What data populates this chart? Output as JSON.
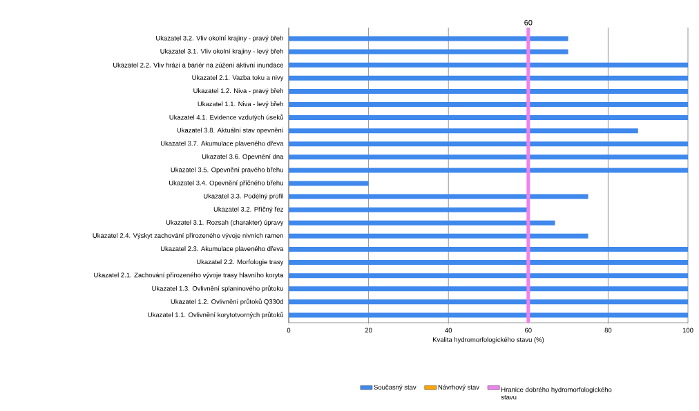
{
  "chart_data": {
    "type": "bar",
    "orientation": "horizontal",
    "categories": [
      "Ukazatel 3.2. Vliv okolní krajiny - pravý břeh",
      "Ukazatel 3.1. Vliv okolní krajiny - levý břeh",
      "Ukazatel 2.2. Vliv hrází a bariér na zúžení aktivní inundace",
      "Ukazatel 2.1. Vazba toku a nivy",
      "Ukazatel 1.2. Niva - pravý břeh",
      "Ukazatel 1.1. Niva - levý břeh",
      "Ukazatel 4.1. Evidence vzdutých úseků",
      "Ukazatel 3.8. Aktuální stav opevnění",
      "Ukazatel 3.7. Akumulace plaveného dřeva",
      "Ukazatel 3.6. Opevnění dna",
      "Ukazatel 3.5. Opevnění pravého břehu",
      "Ukazatel 3.4. Opevnění příčného břehu",
      "Ukazatel 3.3. Podélný profil",
      "Ukazatel 3.2. Příčný řez",
      "Ukazatel 3.1. Rozsah (charakter) úpravy",
      "Ukazatel 2.4. Výskyt zachování přirozeného vývoje nivních ramen",
      "Ukazatel 2.3. Akumulace plaveného dřeva",
      "Ukazatel 2.2. Morfologie trasy",
      "Ukazatel 2.1. Zachování přirozeného vývoje trasy hlavního koryta",
      "Ukazatel 1.3. Ovlivnění splaninového průtoku",
      "Ukazatel 1.2. Ovlivnění průtoků Q330d",
      "Ukazatel 1.1. Ovlivnění korytotvorných průtoků"
    ],
    "series": [
      {
        "name": "Současný stav",
        "color": "#3f88ec",
        "values": [
          70,
          70,
          100,
          100,
          100,
          100,
          100,
          87.5,
          100,
          100,
          100,
          20,
          75,
          60,
          66.7,
          75,
          100,
          100,
          100,
          100,
          100,
          100
        ]
      },
      {
        "name": "Návrhový stav",
        "color": "#ffa500",
        "values": [
          null,
          null,
          null,
          null,
          null,
          null,
          null,
          null,
          null,
          null,
          null,
          null,
          null,
          null,
          null,
          null,
          null,
          null,
          null,
          null,
          null,
          null
        ]
      }
    ],
    "xlabel": "Kvalita hydromorfologického stavu (%)",
    "xlim": [
      0,
      100
    ],
    "xticks": [
      0,
      20,
      40,
      60,
      80,
      100
    ],
    "grid": "x",
    "legend": "bottom",
    "ref_lines": [
      {
        "axis": "x",
        "value": 60,
        "label": "Hranice dobrého hydromorfologického stavu",
        "color": "#ee82ee"
      }
    ],
    "annotations": [
      "60"
    ]
  }
}
